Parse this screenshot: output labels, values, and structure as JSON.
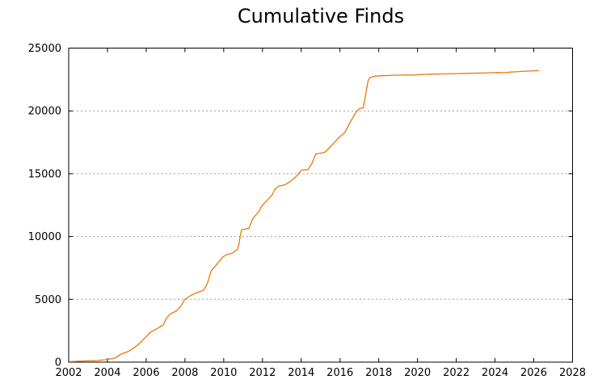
{
  "title": "Cumulative Finds",
  "chart_data": {
    "type": "line",
    "title": "Cumulative Finds",
    "xlabel": "",
    "ylabel": "",
    "xlim": [
      2002,
      2028
    ],
    "ylim": [
      0,
      25000
    ],
    "x_ticks": [
      2002,
      2004,
      2006,
      2008,
      2010,
      2012,
      2014,
      2016,
      2018,
      2020,
      2022,
      2024,
      2026,
      2028
    ],
    "y_ticks": [
      0,
      5000,
      10000,
      15000,
      20000,
      25000
    ],
    "grid": "horizontal-dotted",
    "legend_position": "none",
    "line_color": "#e97808",
    "grid_color": "#9e9e9e",
    "axis_color": "#000000",
    "series": [
      {
        "name": "Cumulative Finds",
        "points": [
          [
            2002.05,
            40
          ],
          [
            2002.5,
            70
          ],
          [
            2003.0,
            100
          ],
          [
            2003.5,
            130
          ],
          [
            2004.0,
            210
          ],
          [
            2004.4,
            330
          ],
          [
            2004.7,
            640
          ],
          [
            2005.1,
            860
          ],
          [
            2005.5,
            1280
          ],
          [
            2005.8,
            1720
          ],
          [
            2006.0,
            2030
          ],
          [
            2006.2,
            2360
          ],
          [
            2006.45,
            2570
          ],
          [
            2006.7,
            2790
          ],
          [
            2006.9,
            3000
          ],
          [
            2007.05,
            3520
          ],
          [
            2007.25,
            3850
          ],
          [
            2007.55,
            4060
          ],
          [
            2007.8,
            4490
          ],
          [
            2008.0,
            5020
          ],
          [
            2008.3,
            5310
          ],
          [
            2008.6,
            5520
          ],
          [
            2008.95,
            5710
          ],
          [
            2009.15,
            6250
          ],
          [
            2009.35,
            7260
          ],
          [
            2009.7,
            7910
          ],
          [
            2009.95,
            8360
          ],
          [
            2010.15,
            8560
          ],
          [
            2010.45,
            8680
          ],
          [
            2010.7,
            8960
          ],
          [
            2010.78,
            9350
          ],
          [
            2010.85,
            10000
          ],
          [
            2010.92,
            10550
          ],
          [
            2011.3,
            10640
          ],
          [
            2011.5,
            11430
          ],
          [
            2011.8,
            11970
          ],
          [
            2012.0,
            12500
          ],
          [
            2012.3,
            12980
          ],
          [
            2012.5,
            13330
          ],
          [
            2012.65,
            13790
          ],
          [
            2012.85,
            14010
          ],
          [
            2013.15,
            14120
          ],
          [
            2013.4,
            14330
          ],
          [
            2013.65,
            14640
          ],
          [
            2013.85,
            14970
          ],
          [
            2014.0,
            15280
          ],
          [
            2014.35,
            15330
          ],
          [
            2014.55,
            15820
          ],
          [
            2014.75,
            16570
          ],
          [
            2015.2,
            16690
          ],
          [
            2015.45,
            17060
          ],
          [
            2015.8,
            17640
          ],
          [
            2016.0,
            17960
          ],
          [
            2016.25,
            18280
          ],
          [
            2016.5,
            19030
          ],
          [
            2016.7,
            19560
          ],
          [
            2016.85,
            19950
          ],
          [
            2017.0,
            20160
          ],
          [
            2017.2,
            20260
          ],
          [
            2017.35,
            21500
          ],
          [
            2017.45,
            22400
          ],
          [
            2017.55,
            22650
          ],
          [
            2017.8,
            22770
          ],
          [
            2018.2,
            22800
          ],
          [
            2018.8,
            22840
          ],
          [
            2019.4,
            22870
          ],
          [
            2019.8,
            22860
          ],
          [
            2020.2,
            22900
          ],
          [
            2020.8,
            22925
          ],
          [
            2021.4,
            22945
          ],
          [
            2022.0,
            22965
          ],
          [
            2022.6,
            22990
          ],
          [
            2023.2,
            23010
          ],
          [
            2023.8,
            23035
          ],
          [
            2024.2,
            23055
          ],
          [
            2024.45,
            23040
          ],
          [
            2024.8,
            23090
          ],
          [
            2025.2,
            23130
          ],
          [
            2025.7,
            23165
          ],
          [
            2026.0,
            23190
          ],
          [
            2026.25,
            23210
          ]
        ]
      }
    ]
  }
}
